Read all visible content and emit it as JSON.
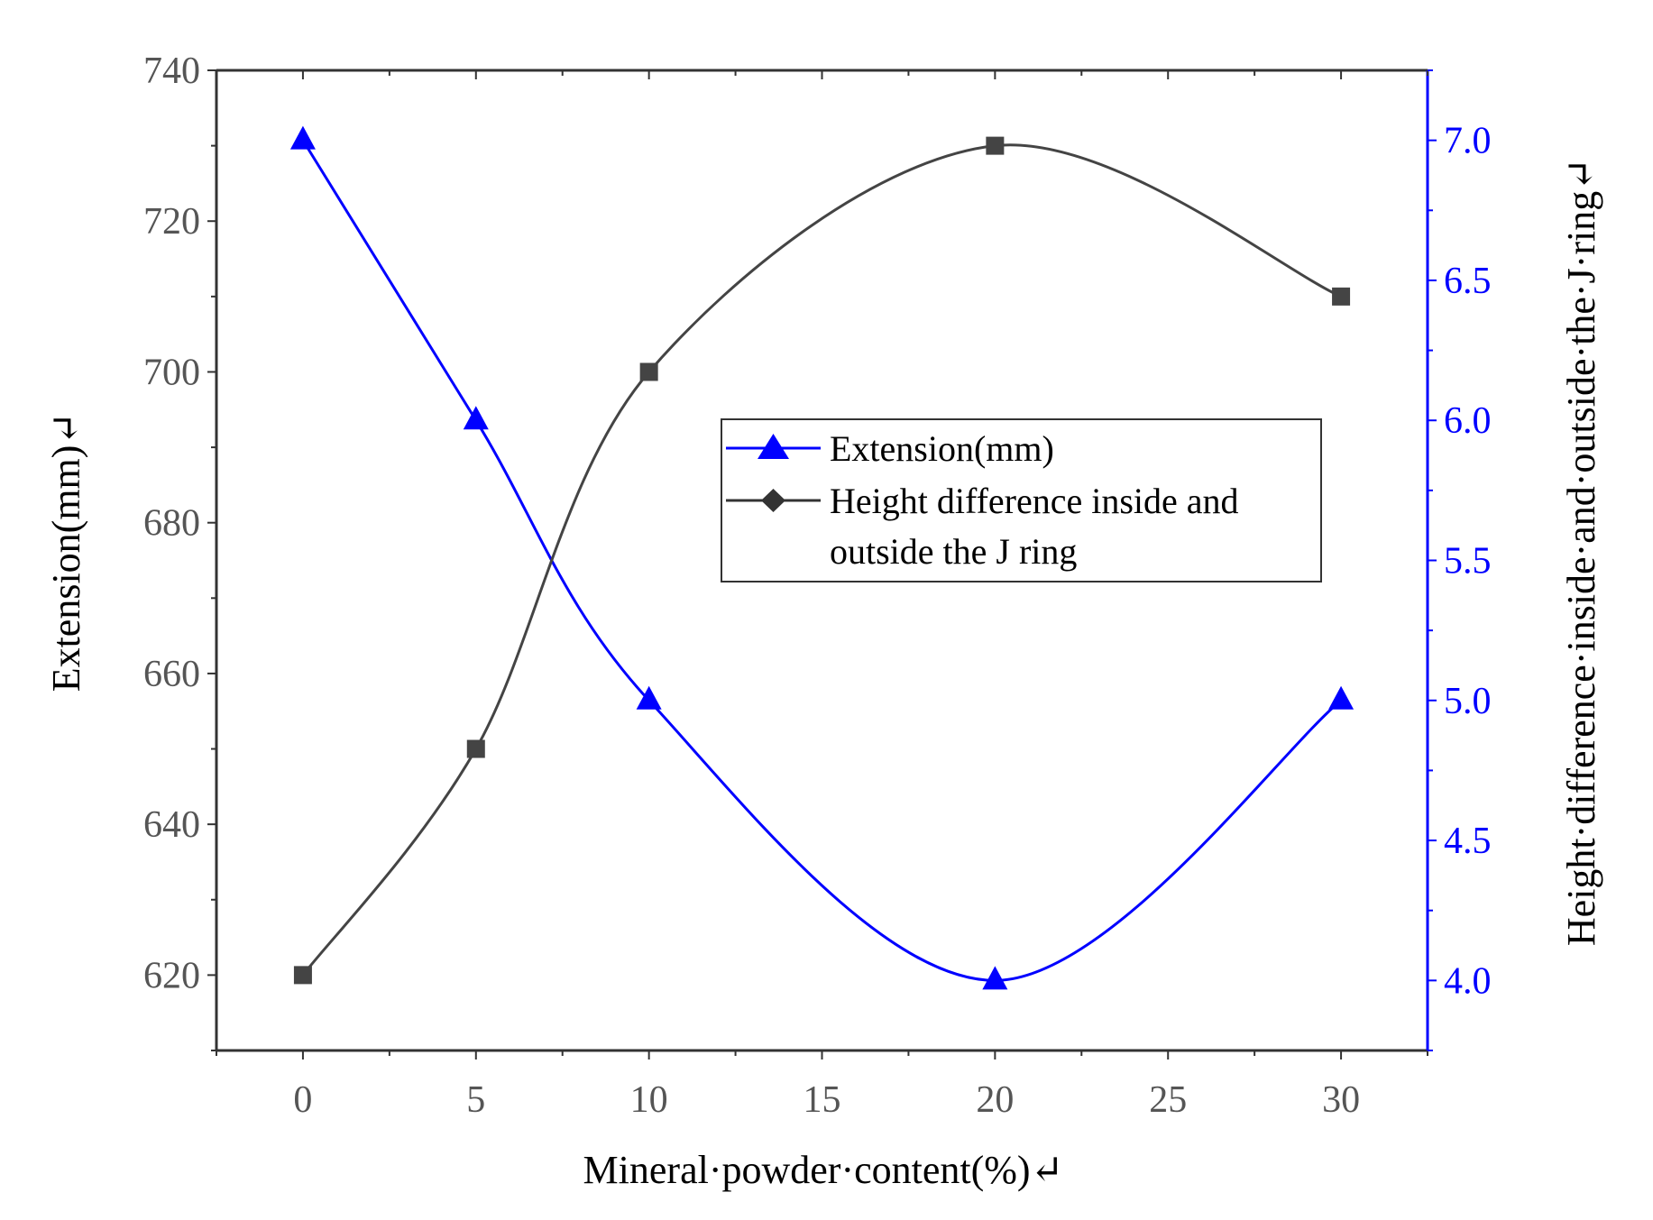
{
  "chart_data": {
    "type": "line",
    "x": [
      0,
      5,
      10,
      20,
      30
    ],
    "xlabel": "Mineral·powder·content(%)↵",
    "ylabel": "Extension(mm)↵",
    "y2label": "Height·difference·inside·and·outside·the·J·ring↵",
    "xlim": [
      -2.5,
      32.5
    ],
    "ylim": [
      610,
      740
    ],
    "y2lim": [
      3.75,
      7.25
    ],
    "xticks": [
      "0",
      "5",
      "10",
      "15",
      "20",
      "25",
      "30"
    ],
    "yticks": [
      "620",
      "640",
      "660",
      "680",
      "700",
      "720",
      "740"
    ],
    "y2ticks": [
      "4.0",
      "4.5",
      "5.0",
      "5.5",
      "6.0",
      "6.5",
      "7.0"
    ],
    "grid": false,
    "legend_position": "center-right",
    "series": [
      {
        "name": "Extension(mm)",
        "axis": "right",
        "values": [
          7.0,
          6.0,
          5.0,
          4.0,
          5.0
        ],
        "marker": "triangle",
        "color": "#0000ff"
      },
      {
        "name": "Height difference inside and outside the J ring",
        "axis": "left",
        "values": [
          620,
          650,
          700,
          730,
          710
        ],
        "marker": "square",
        "color": "#444444"
      }
    ],
    "legend": [
      {
        "label": "Extension(mm)",
        "marker": "triangle",
        "color": "#0000ff"
      },
      {
        "label_line1": "Height difference inside and",
        "label_line2": "outside the J ring",
        "marker": "diamond",
        "color": "#333333"
      }
    ]
  }
}
